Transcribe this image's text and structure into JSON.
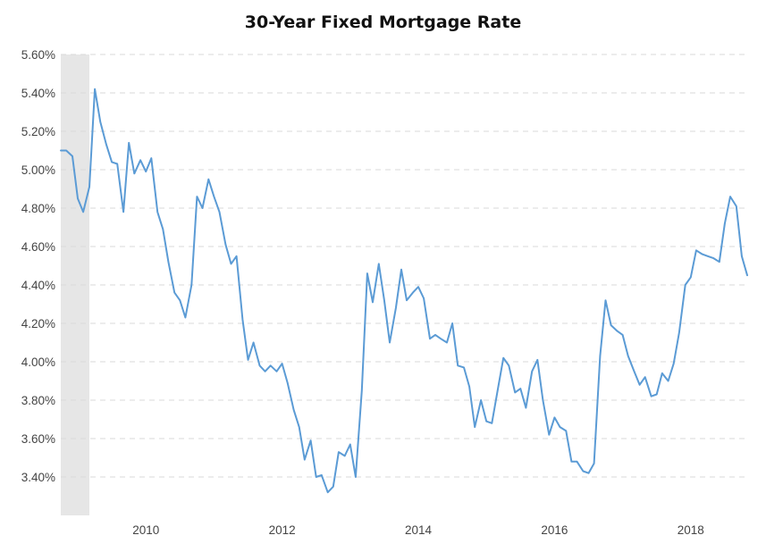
{
  "chart_data": {
    "type": "line",
    "title": "30-Year Fixed Mortgage Rate",
    "xlabel": "",
    "ylabel": "",
    "ylim": [
      3.2,
      5.6
    ],
    "xlim": [
      2008.75,
      2018.83
    ],
    "y_ticks": [
      "3.40%",
      "3.60%",
      "3.80%",
      "4.00%",
      "4.20%",
      "4.40%",
      "4.60%",
      "4.80%",
      "5.00%",
      "5.20%",
      "5.40%",
      "5.60%"
    ],
    "y_tick_values": [
      3.4,
      3.6,
      3.8,
      4.0,
      4.2,
      4.4,
      4.6,
      4.8,
      5.0,
      5.2,
      5.4,
      5.6
    ],
    "x_ticks": [
      "2010",
      "2012",
      "2014",
      "2016",
      "2018"
    ],
    "x_tick_values": [
      2010,
      2012,
      2014,
      2016,
      2018
    ],
    "grid": true,
    "recession_shading": [
      2008.75,
      2009.17
    ],
    "line_color": "#5b9bd5",
    "shading_color": "#e6e6e6",
    "series": [
      {
        "x": [
          2008.75,
          2008.83,
          2008.92,
          2009.0,
          2009.08,
          2009.17,
          2009.25,
          2009.33,
          2009.42,
          2009.5,
          2009.58,
          2009.67,
          2009.75,
          2009.83,
          2009.92,
          2010.0,
          2010.08,
          2010.17,
          2010.25,
          2010.33,
          2010.42,
          2010.5,
          2010.58,
          2010.67,
          2010.75,
          2010.83,
          2010.92,
          2011.0,
          2011.08,
          2011.17,
          2011.25,
          2011.33,
          2011.42,
          2011.5,
          2011.58,
          2011.67,
          2011.75,
          2011.83,
          2011.92,
          2012.0,
          2012.08,
          2012.17,
          2012.25,
          2012.33,
          2012.42,
          2012.5,
          2012.58,
          2012.67,
          2012.75,
          2012.83,
          2012.92,
          2013.0,
          2013.08,
          2013.17,
          2013.25,
          2013.33,
          2013.42,
          2013.5,
          2013.58,
          2013.67,
          2013.75,
          2013.83,
          2013.92,
          2014.0,
          2014.08,
          2014.17,
          2014.25,
          2014.33,
          2014.42,
          2014.5,
          2014.58,
          2014.67,
          2014.75,
          2014.83,
          2014.92,
          2015.0,
          2015.08,
          2015.17,
          2015.25,
          2015.33,
          2015.42,
          2015.5,
          2015.58,
          2015.67,
          2015.75,
          2015.83,
          2015.92,
          2016.0,
          2016.08,
          2016.17,
          2016.25,
          2016.33,
          2016.42,
          2016.5,
          2016.58,
          2016.67,
          2016.75,
          2016.83,
          2016.92,
          2017.0,
          2017.08,
          2017.17,
          2017.25,
          2017.33,
          2017.42,
          2017.5,
          2017.58,
          2017.67,
          2017.75,
          2017.83,
          2017.92,
          2018.0,
          2018.08,
          2018.17,
          2018.25,
          2018.33,
          2018.42,
          2018.5,
          2018.58,
          2018.67,
          2018.75,
          2018.83
        ],
        "y": [
          5.1,
          5.1,
          5.07,
          4.85,
          4.78,
          4.91,
          5.42,
          5.25,
          5.13,
          5.04,
          5.03,
          4.78,
          5.14,
          4.98,
          5.05,
          4.99,
          5.06,
          4.78,
          4.69,
          4.52,
          4.36,
          4.32,
          4.23,
          4.4,
          4.86,
          4.8,
          4.95,
          4.86,
          4.78,
          4.61,
          4.51,
          4.55,
          4.22,
          4.01,
          4.1,
          3.98,
          3.95,
          3.98,
          3.95,
          3.99,
          3.89,
          3.75,
          3.66,
          3.49,
          3.59,
          3.4,
          3.41,
          3.32,
          3.35,
          3.53,
          3.51,
          3.57,
          3.4,
          3.85,
          4.46,
          4.31,
          4.51,
          4.32,
          4.1,
          4.28,
          4.48,
          4.32,
          4.36,
          4.39,
          4.33,
          4.12,
          4.14,
          4.12,
          4.1,
          4.2,
          3.98,
          3.97,
          3.87,
          3.66,
          3.8,
          3.69,
          3.68,
          3.86,
          4.02,
          3.98,
          3.84,
          3.86,
          3.76,
          3.95,
          4.01,
          3.8,
          3.62,
          3.71,
          3.66,
          3.64,
          3.48,
          3.48,
          3.43,
          3.42,
          3.47,
          4.03,
          4.32,
          4.19,
          4.16,
          4.14,
          4.03,
          3.95,
          3.88,
          3.92,
          3.82,
          3.83,
          3.94,
          3.9,
          3.99,
          4.15,
          4.4,
          4.44,
          4.58,
          4.56,
          4.55,
          4.54,
          4.52,
          4.72,
          4.86,
          4.81,
          4.55,
          4.45
        ]
      }
    ]
  }
}
